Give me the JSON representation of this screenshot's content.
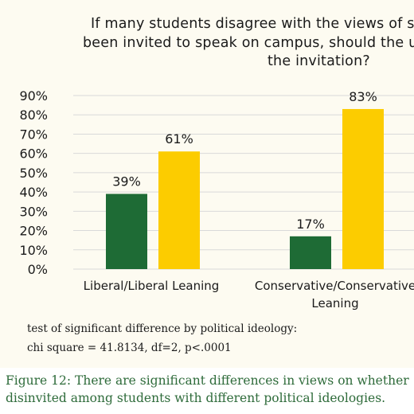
{
  "chart_data": {
    "type": "bar",
    "title_lines": [
      "If many students disagree with the views of s",
      "been invited to speak on campus, should the u",
      "the invitation?"
    ],
    "categories": [
      [
        "Liberal/Liberal Leaning"
      ],
      [
        "Conservative/Conservative",
        "Leaning"
      ]
    ],
    "series": [
      {
        "color": "#1e6b35",
        "values": [
          39,
          17
        ],
        "labels": [
          "39%",
          "17%"
        ]
      },
      {
        "color": "#fccc00",
        "values": [
          61,
          83
        ],
        "labels": [
          "61%",
          "83%"
        ]
      }
    ],
    "ylim": [
      0,
      90
    ],
    "yticks": [
      "0%",
      "10%",
      "20%",
      "30%",
      "40%",
      "50%",
      "60%",
      "70%",
      "80%",
      "90%"
    ],
    "grid": true,
    "legend": "none"
  },
  "note": {
    "line1": "test of significant difference by political ideology:",
    "line2": "chi square = 41.8134, df=2, p<.0001"
  },
  "caption": {
    "line1": "Figure 12: There are significant differences in views on whether",
    "line2": "disinvited among students with different political ideologies."
  }
}
